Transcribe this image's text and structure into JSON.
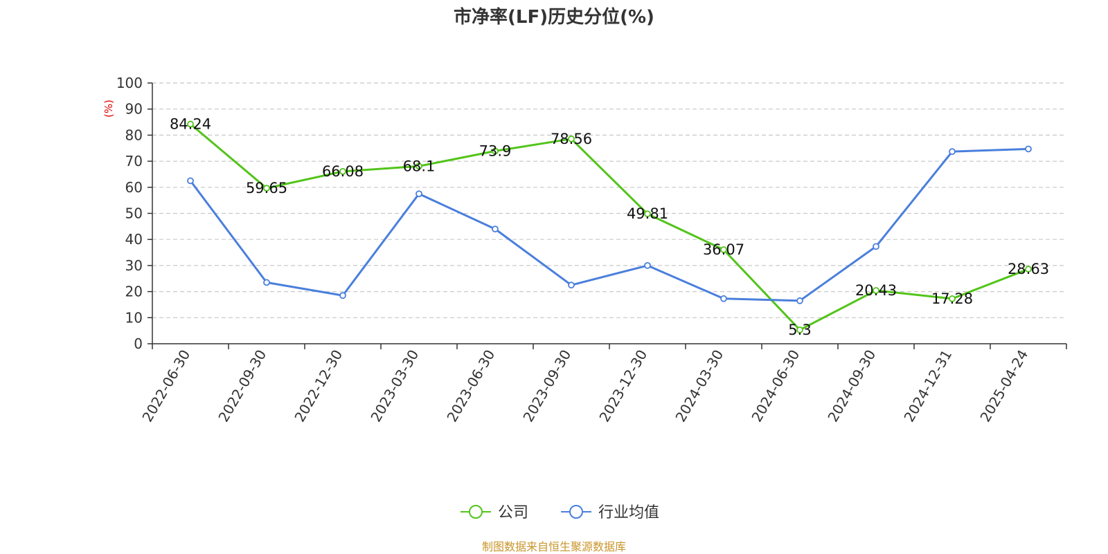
{
  "chart_data": {
    "type": "line",
    "title": "市净率(LF)历史分位(%)",
    "ylabel": "(%)",
    "xlabel": "",
    "ylim": [
      0,
      100
    ],
    "yticks": [
      0,
      10,
      20,
      30,
      40,
      50,
      60,
      70,
      80,
      90,
      100
    ],
    "grid": true,
    "legend_position": "bottom",
    "categories": [
      "2022-06-30",
      "2022-09-30",
      "2022-12-30",
      "2023-03-30",
      "2023-06-30",
      "2023-09-30",
      "2023-12-30",
      "2024-03-30",
      "2024-06-30",
      "2024-09-30",
      "2024-12-31",
      "2025-04-24"
    ],
    "series": [
      {
        "name": "公司",
        "color": "#52c41a",
        "show_labels": true,
        "values": [
          84.24,
          59.65,
          66.08,
          68.1,
          73.9,
          78.56,
          49.81,
          36.07,
          5.3,
          20.43,
          17.28,
          28.63
        ]
      },
      {
        "name": "行业均值",
        "color": "#4a7fdc",
        "show_labels": false,
        "values": [
          62.5,
          23.5,
          18.5,
          57.5,
          44.0,
          22.5,
          30.0,
          17.3,
          16.5,
          37.3,
          73.7,
          74.7
        ]
      }
    ]
  },
  "footer": {
    "source": "制图数据来自恒生聚源数据库"
  }
}
